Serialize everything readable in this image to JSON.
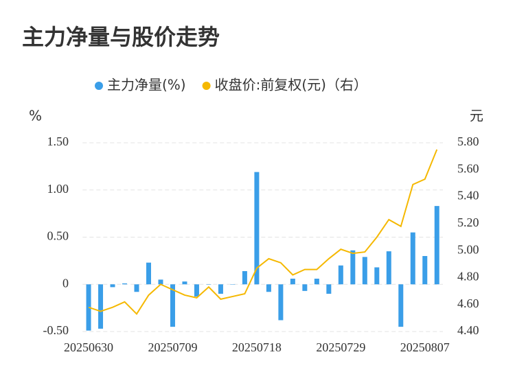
{
  "chart_data": {
    "type": "bar_line",
    "title": "主力净量与股价走势",
    "y_unit": "%",
    "y2_unit": "元",
    "categories": [
      "20250630",
      null,
      null,
      null,
      null,
      null,
      null,
      "20250709",
      null,
      null,
      null,
      null,
      null,
      null,
      "20250718",
      null,
      null,
      null,
      null,
      null,
      null,
      "20250729",
      null,
      null,
      null,
      null,
      null,
      null,
      "20250807",
      null
    ],
    "series": [
      {
        "name": "主力净量(%)",
        "type": "bar",
        "color": "#3a9ee8",
        "values": [
          -0.49,
          -0.47,
          -0.03,
          0.01,
          -0.08,
          0.23,
          0.05,
          -0.45,
          0.03,
          -0.13,
          0,
          -0.1,
          0,
          0.14,
          1.19,
          -0.08,
          -0.38,
          0.06,
          -0.07,
          0.06,
          -0.1,
          0.2,
          0.36,
          0.29,
          0.18,
          0.35,
          -0.45,
          0.55,
          0.3,
          0.83
        ]
      },
      {
        "name": "收盘价:前复权(元)（右）",
        "type": "line",
        "axis": "y2",
        "color": "#f5b800",
        "values": [
          4.58,
          4.55,
          4.58,
          4.62,
          4.53,
          4.67,
          4.75,
          4.71,
          4.67,
          4.65,
          4.73,
          4.64,
          4.66,
          4.68,
          4.87,
          4.94,
          4.91,
          4.82,
          4.86,
          4.86,
          4.94,
          5.01,
          4.98,
          4.99,
          5.1,
          5.23,
          5.18,
          5.49,
          5.53,
          5.75
        ]
      }
    ],
    "ylim": [
      -0.5,
      1.5
    ],
    "yticks": [
      {
        "value": -0.5,
        "label": "-0.50"
      },
      0,
      {
        "value": 0.5,
        "label": "0.50"
      },
      {
        "value": 1,
        "label": "1.00"
      },
      {
        "value": 1.5,
        "label": "1.50"
      }
    ],
    "y2lim": [
      4.4,
      5.8
    ],
    "y2ticks": [
      {
        "value": 4.4,
        "label": "4.40"
      },
      {
        "value": 4.6,
        "label": "4.60"
      },
      {
        "value": 4.8,
        "label": "4.80"
      },
      {
        "value": 5.0,
        "label": "5.00"
      },
      {
        "value": 5.2,
        "label": "5.20"
      },
      {
        "value": 5.4,
        "label": "5.40"
      },
      {
        "value": 5.6,
        "label": "5.60"
      },
      {
        "value": 5.8,
        "label": "5.80"
      }
    ],
    "grid": true
  }
}
